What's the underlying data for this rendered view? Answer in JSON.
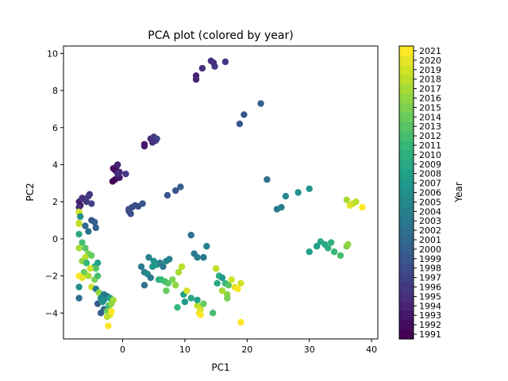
{
  "chart_data": {
    "type": "scatter",
    "title": "PCA plot (colored by year)",
    "xlabel": "PC1",
    "ylabel": "PC2",
    "xlim": [
      -9.5,
      41
    ],
    "ylim": [
      -5.4,
      10.4
    ],
    "xticks": [
      0,
      10,
      20,
      30,
      40
    ],
    "yticks": [
      -4,
      -2,
      0,
      2,
      4,
      6,
      8,
      10
    ],
    "grid": false,
    "colorbar": {
      "label": "Year",
      "min": 1991,
      "max": 2021,
      "ticks": [
        1991,
        1992,
        1993,
        1994,
        1995,
        1996,
        1997,
        1998,
        1999,
        2000,
        2001,
        2002,
        2003,
        2004,
        2005,
        2006,
        2007,
        2008,
        2009,
        2010,
        2011,
        2012,
        2013,
        2014,
        2015,
        2016,
        2017,
        2018,
        2019,
        2020,
        2021
      ],
      "colormap": "viridis"
    },
    "points": [
      {
        "x": 11.8,
        "y": 8.8,
        "year": 1994
      },
      {
        "x": 11.8,
        "y": 8.6,
        "year": 1994
      },
      {
        "x": 12.8,
        "y": 9.2,
        "year": 1995
      },
      {
        "x": 14.2,
        "y": 9.6,
        "year": 1995
      },
      {
        "x": 14.8,
        "y": 9.3,
        "year": 1996
      },
      {
        "x": 16.5,
        "y": 9.55,
        "year": 1996
      },
      {
        "x": 14.6,
        "y": 9.5,
        "year": 1995
      },
      {
        "x": 22.2,
        "y": 7.3,
        "year": 2000
      },
      {
        "x": 19.5,
        "y": 6.7,
        "year": 1999
      },
      {
        "x": 18.8,
        "y": 6.2,
        "year": 1999
      },
      {
        "x": 3.5,
        "y": 5.1,
        "year": 1993
      },
      {
        "x": 3.5,
        "y": 5.0,
        "year": 1993
      },
      {
        "x": 4.5,
        "y": 5.4,
        "year": 1995
      },
      {
        "x": 5.0,
        "y": 5.5,
        "year": 1996
      },
      {
        "x": 5.3,
        "y": 5.3,
        "year": 1996
      },
      {
        "x": 5.5,
        "y": 5.4,
        "year": 1997
      },
      {
        "x": 4.8,
        "y": 5.2,
        "year": 1995
      },
      {
        "x": -1.5,
        "y": 3.8,
        "year": 1992
      },
      {
        "x": -1.0,
        "y": 3.9,
        "year": 1993
      },
      {
        "x": -0.8,
        "y": 4.0,
        "year": 1994
      },
      {
        "x": -1.2,
        "y": 3.7,
        "year": 1992
      },
      {
        "x": -0.5,
        "y": 3.6,
        "year": 1994
      },
      {
        "x": 0.5,
        "y": 3.5,
        "year": 1996
      },
      {
        "x": -1.2,
        "y": 3.2,
        "year": 1992
      },
      {
        "x": -0.5,
        "y": 3.3,
        "year": 1993
      },
      {
        "x": -1.6,
        "y": 3.1,
        "year": 1991
      },
      {
        "x": -0.8,
        "y": 3.5,
        "year": 1995
      },
      {
        "x": 1.0,
        "y": 1.6,
        "year": 1998
      },
      {
        "x": 1.5,
        "y": 1.7,
        "year": 1998
      },
      {
        "x": 2.0,
        "y": 1.8,
        "year": 1998
      },
      {
        "x": 2.5,
        "y": 1.75,
        "year": 1998
      },
      {
        "x": 3.2,
        "y": 1.9,
        "year": 1999
      },
      {
        "x": 1.3,
        "y": 1.35,
        "year": 1998
      },
      {
        "x": 1.0,
        "y": 1.5,
        "year": 1998
      },
      {
        "x": 7.2,
        "y": 2.35,
        "year": 1999
      },
      {
        "x": 8.5,
        "y": 2.6,
        "year": 1999
      },
      {
        "x": 9.3,
        "y": 2.8,
        "year": 2000
      },
      {
        "x": -7.0,
        "y": 2.0,
        "year": 1994
      },
      {
        "x": -6.5,
        "y": 2.2,
        "year": 1995
      },
      {
        "x": -6.0,
        "y": 2.1,
        "year": 1995
      },
      {
        "x": -5.5,
        "y": 2.3,
        "year": 1996
      },
      {
        "x": -5.3,
        "y": 2.4,
        "year": 1996
      },
      {
        "x": -6.8,
        "y": 1.8,
        "year": 1993
      },
      {
        "x": -7.0,
        "y": 1.7,
        "year": 1995
      },
      {
        "x": -5.8,
        "y": 2.0,
        "year": 1996
      },
      {
        "x": -5.0,
        "y": 1.9,
        "year": 1997
      },
      {
        "x": -7.0,
        "y": 1.4,
        "year": 2020
      },
      {
        "x": -7.0,
        "y": 1.45,
        "year": 2019
      },
      {
        "x": -7.0,
        "y": 0.8,
        "year": 2021
      },
      {
        "x": -7.0,
        "y": 0.85,
        "year": 2018
      },
      {
        "x": -6.8,
        "y": 1.2,
        "year": 2006
      },
      {
        "x": -5.0,
        "y": 1.0,
        "year": 1999
      },
      {
        "x": -4.5,
        "y": 0.9,
        "year": 2000
      },
      {
        "x": -4.3,
        "y": 0.6,
        "year": 2000
      },
      {
        "x": -5.5,
        "y": 0.4,
        "year": 2002
      },
      {
        "x": -6.0,
        "y": 0.7,
        "year": 2001
      },
      {
        "x": -7.0,
        "y": 0.25,
        "year": 2009
      },
      {
        "x": -6.5,
        "y": -0.2,
        "year": 2012
      },
      {
        "x": -6.0,
        "y": -0.5,
        "year": 2013
      },
      {
        "x": -7.0,
        "y": -0.5,
        "year": 2017
      },
      {
        "x": -5.5,
        "y": -0.8,
        "year": 2015
      },
      {
        "x": -6.0,
        "y": -1.0,
        "year": 2018
      },
      {
        "x": -5.0,
        "y": -0.9,
        "year": 2014
      },
      {
        "x": -6.5,
        "y": -1.2,
        "year": 2016
      },
      {
        "x": -5.8,
        "y": -1.3,
        "year": 2011
      },
      {
        "x": -4.5,
        "y": -1.5,
        "year": 2010
      },
      {
        "x": -4.0,
        "y": -1.3,
        "year": 2008
      },
      {
        "x": -4.3,
        "y": -1.6,
        "year": 2013
      },
      {
        "x": -5.2,
        "y": -1.6,
        "year": 2019
      },
      {
        "x": -6.2,
        "y": -1.8,
        "year": 2014
      },
      {
        "x": -7.0,
        "y": -2.0,
        "year": 2021
      },
      {
        "x": -6.5,
        "y": -2.1,
        "year": 2020
      },
      {
        "x": -5.5,
        "y": -2.0,
        "year": 2017
      },
      {
        "x": -4.5,
        "y": -2.2,
        "year": 2015
      },
      {
        "x": -4.0,
        "y": -2.0,
        "year": 2012
      },
      {
        "x": -7.0,
        "y": -2.6,
        "year": 2006
      },
      {
        "x": -5.0,
        "y": -2.6,
        "year": 2019
      },
      {
        "x": -4.3,
        "y": -2.7,
        "year": 2003
      },
      {
        "x": -3.8,
        "y": -2.9,
        "year": 2016
      },
      {
        "x": -7.0,
        "y": -3.2,
        "year": 2002
      },
      {
        "x": -4.0,
        "y": -3.5,
        "year": 2000
      },
      {
        "x": -3.5,
        "y": -3.2,
        "year": 2005
      },
      {
        "x": -3.0,
        "y": -3.0,
        "year": 2004
      },
      {
        "x": -2.5,
        "y": -3.1,
        "year": 2003
      },
      {
        "x": -3.2,
        "y": -3.4,
        "year": 2007
      },
      {
        "x": -2.0,
        "y": -3.2,
        "year": 2008
      },
      {
        "x": -1.5,
        "y": -3.3,
        "year": 2017
      },
      {
        "x": -2.2,
        "y": -3.6,
        "year": 2012
      },
      {
        "x": -3.0,
        "y": -3.8,
        "year": 2001
      },
      {
        "x": -3.5,
        "y": -4.0,
        "year": 2000
      },
      {
        "x": -2.5,
        "y": -3.9,
        "year": 2014
      },
      {
        "x": -2.0,
        "y": -4.1,
        "year": 2020
      },
      {
        "x": -1.8,
        "y": -3.9,
        "year": 2021
      },
      {
        "x": -2.3,
        "y": -4.7,
        "year": 2021
      },
      {
        "x": -2.5,
        "y": -4.2,
        "year": 2018
      },
      {
        "x": -3.0,
        "y": -3.3,
        "year": 2006
      },
      {
        "x": -1.8,
        "y": -3.5,
        "year": 2016
      },
      {
        "x": 3.0,
        "y": -1.5,
        "year": 2003
      },
      {
        "x": 3.5,
        "y": -1.8,
        "year": 2004
      },
      {
        "x": 4.0,
        "y": -1.9,
        "year": 2005
      },
      {
        "x": 4.5,
        "y": -2.1,
        "year": 2003
      },
      {
        "x": 4.2,
        "y": -1.0,
        "year": 2004
      },
      {
        "x": 5.0,
        "y": -1.2,
        "year": 2006
      },
      {
        "x": 5.5,
        "y": -1.4,
        "year": 2008
      },
      {
        "x": 4.8,
        "y": -1.5,
        "year": 2007
      },
      {
        "x": 3.5,
        "y": -2.5,
        "year": 2002
      },
      {
        "x": 6.0,
        "y": -1.3,
        "year": 2004
      },
      {
        "x": 6.5,
        "y": -1.5,
        "year": 2003
      },
      {
        "x": 7.0,
        "y": -1.2,
        "year": 2005
      },
      {
        "x": 7.5,
        "y": -1.1,
        "year": 2004
      },
      {
        "x": 5.8,
        "y": -2.2,
        "year": 2010
      },
      {
        "x": 6.2,
        "y": -2.2,
        "year": 2011
      },
      {
        "x": 6.8,
        "y": -2.3,
        "year": 2012
      },
      {
        "x": 7.3,
        "y": -2.4,
        "year": 2013
      },
      {
        "x": 7.0,
        "y": -2.8,
        "year": 2014
      },
      {
        "x": 8.0,
        "y": -2.2,
        "year": 2015
      },
      {
        "x": 8.5,
        "y": -2.5,
        "year": 2016
      },
      {
        "x": 9.0,
        "y": -1.8,
        "year": 2017
      },
      {
        "x": 9.5,
        "y": -1.5,
        "year": 2018
      },
      {
        "x": 8.8,
        "y": -3.7,
        "year": 2011
      },
      {
        "x": 10.0,
        "y": -3.4,
        "year": 2007
      },
      {
        "x": 9.8,
        "y": -3.0,
        "year": 2008
      },
      {
        "x": 10.3,
        "y": -2.8,
        "year": 2019
      },
      {
        "x": 11.0,
        "y": 0.2,
        "year": 2002
      },
      {
        "x": 11.5,
        "y": -0.8,
        "year": 2003
      },
      {
        "x": 12.0,
        "y": -1.0,
        "year": 2004
      },
      {
        "x": 13.0,
        "y": -1.0,
        "year": 2003
      },
      {
        "x": 13.5,
        "y": -0.4,
        "year": 2004
      },
      {
        "x": 11.0,
        "y": -3.2,
        "year": 2009
      },
      {
        "x": 12.0,
        "y": -3.6,
        "year": 2018
      },
      {
        "x": 12.5,
        "y": -3.8,
        "year": 2019
      },
      {
        "x": 13.0,
        "y": -3.5,
        "year": 2014
      },
      {
        "x": 14.5,
        "y": -4.0,
        "year": 2012
      },
      {
        "x": 12.0,
        "y": -3.3,
        "year": 2008
      },
      {
        "x": 12.3,
        "y": -4.0,
        "year": 2020
      },
      {
        "x": 12.5,
        "y": -4.1,
        "year": 2021
      },
      {
        "x": 15.0,
        "y": -1.6,
        "year": 2018
      },
      {
        "x": 15.5,
        "y": -2.0,
        "year": 2010
      },
      {
        "x": 16.0,
        "y": -2.1,
        "year": 2007
      },
      {
        "x": 16.5,
        "y": -2.4,
        "year": 2011
      },
      {
        "x": 17.0,
        "y": -2.5,
        "year": 2013
      },
      {
        "x": 17.5,
        "y": -2.2,
        "year": 2019
      },
      {
        "x": 18.0,
        "y": -2.6,
        "year": 2020
      },
      {
        "x": 18.5,
        "y": -2.7,
        "year": 2021
      },
      {
        "x": 19.0,
        "y": -2.4,
        "year": 2019
      },
      {
        "x": 16.8,
        "y": -3.0,
        "year": 2016
      },
      {
        "x": 16.8,
        "y": -3.2,
        "year": 2015
      },
      {
        "x": 15.2,
        "y": -2.4,
        "year": 2009
      },
      {
        "x": 16.0,
        "y": -2.8,
        "year": 2017
      },
      {
        "x": 19.0,
        "y": -4.5,
        "year": 2021
      },
      {
        "x": 23.2,
        "y": 3.2,
        "year": 2002
      },
      {
        "x": 24.8,
        "y": 1.6,
        "year": 2003
      },
      {
        "x": 25.5,
        "y": 1.7,
        "year": 2004
      },
      {
        "x": 26.2,
        "y": 2.3,
        "year": 2005
      },
      {
        "x": 28.2,
        "y": 2.5,
        "year": 2006
      },
      {
        "x": 30.0,
        "y": 2.7,
        "year": 2007
      },
      {
        "x": 30.0,
        "y": -0.7,
        "year": 2008
      },
      {
        "x": 31.2,
        "y": -0.4,
        "year": 2008
      },
      {
        "x": 31.8,
        "y": -0.15,
        "year": 2009
      },
      {
        "x": 32.5,
        "y": -0.3,
        "year": 2009
      },
      {
        "x": 33.0,
        "y": -0.5,
        "year": 2010
      },
      {
        "x": 34.0,
        "y": -0.7,
        "year": 2011
      },
      {
        "x": 35.0,
        "y": -0.9,
        "year": 2012
      },
      {
        "x": 33.5,
        "y": -0.2,
        "year": 2010
      },
      {
        "x": 36.0,
        "y": -0.4,
        "year": 2015
      },
      {
        "x": 36.2,
        "y": -0.3,
        "year": 2016
      },
      {
        "x": 36.0,
        "y": 2.1,
        "year": 2017
      },
      {
        "x": 36.5,
        "y": 1.8,
        "year": 2020
      },
      {
        "x": 37.0,
        "y": 1.9,
        "year": 2019
      },
      {
        "x": 37.5,
        "y": 2.0,
        "year": 2018
      },
      {
        "x": 38.5,
        "y": 1.7,
        "year": 2021
      }
    ]
  }
}
